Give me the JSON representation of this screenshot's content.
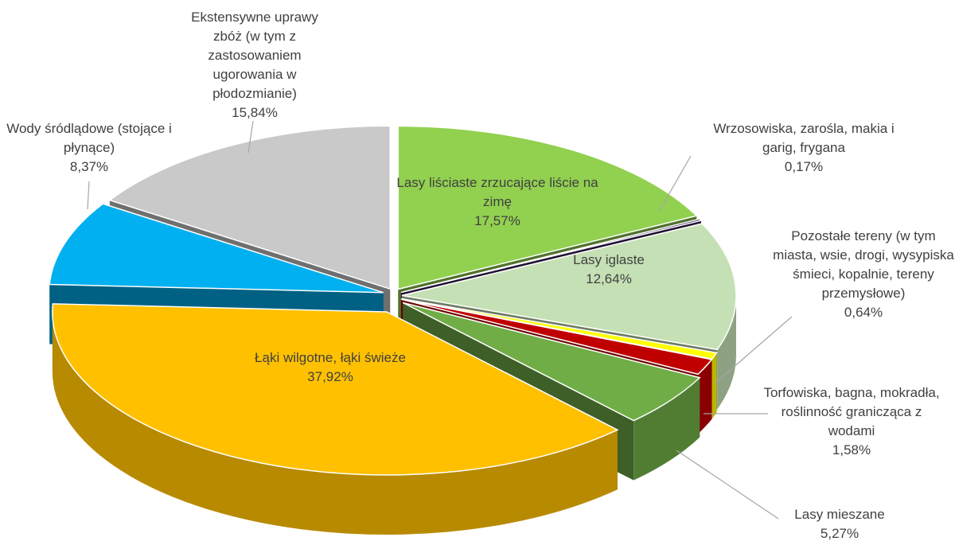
{
  "chart_data": {
    "type": "pie",
    "categories": [
      "Lasy liściaste zrzucające liście na zimę",
      "Wrzosowiska, zarośla, makia i garig, frygana",
      "Lasy iglaste",
      "Pozostałe tereny (w tym miasta, wsie, drogi, wysypiska śmieci, kopalnie, tereny przemysłowe)",
      "Torfowiska, bagna, mokradła, roślinność granicząca z wodami",
      "Lasy mieszane",
      "Łąki wilgotne, łąki świeże",
      "Wody śródlądowe (stojące i płynące)",
      "Ekstensywne uprawy zbóż (w tym z zastosowaniem ugorowania w płodozmianie)"
    ],
    "values": [
      17.57,
      0.17,
      12.64,
      0.64,
      1.58,
      5.27,
      37.92,
      8.37,
      15.84
    ],
    "value_labels": [
      "17,57%",
      "0,17%",
      "12,64%",
      "0,64%",
      "1,58%",
      "5,27%",
      "37,92%",
      "8,37%",
      "15,84%"
    ],
    "colors": [
      "#92d050",
      "#3b1f5a",
      "#c5e0b4",
      "#ffff00",
      "#c00000",
      "#70ad47",
      "#ffc000",
      "#00b0f0",
      "#c9c9c9"
    ]
  }
}
